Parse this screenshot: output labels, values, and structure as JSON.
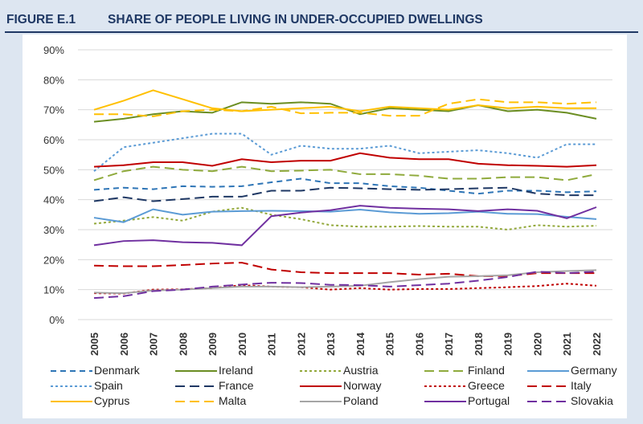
{
  "header": {
    "figure": "FIGURE E.1",
    "title": "SHARE OF PEOPLE LIVING IN UNDER-OCCUPIED DWELLINGS"
  },
  "chart_data": {
    "type": "line",
    "title": "SHARE OF PEOPLE LIVING IN UNDER-OCCUPIED DWELLINGS",
    "xlabel": "",
    "ylabel": "",
    "ylim": [
      0,
      90
    ],
    "yticks": [
      "0%",
      "10%",
      "20%",
      "30%",
      "40%",
      "50%",
      "60%",
      "70%",
      "80%",
      "90%"
    ],
    "grid": true,
    "legend_position": "bottom",
    "x": [
      "2005",
      "2006",
      "2007",
      "2008",
      "2009",
      "2010",
      "2011",
      "2012",
      "2013",
      "2014",
      "2015",
      "2016",
      "2017",
      "2018",
      "2019",
      "2020",
      "2021",
      "2022"
    ],
    "series": [
      {
        "name": "Denmark",
        "color": "#2e75b6",
        "dash": "dash",
        "values": [
          43.3,
          44,
          43.5,
          44.5,
          44.3,
          44.5,
          45.8,
          47,
          45.5,
          45.5,
          44.5,
          44,
          43,
          42,
          43,
          43,
          42.5,
          42.8
        ]
      },
      {
        "name": "Ireland",
        "color": "#6b8e23",
        "dash": "solid",
        "values": [
          66,
          67,
          68.5,
          69.5,
          69,
          72.5,
          72,
          72.5,
          72,
          68.5,
          70.5,
          70,
          69.5,
          71.5,
          69.5,
          70,
          69,
          67
        ]
      },
      {
        "name": "Austria",
        "color": "#92a83a",
        "dash": "dot",
        "values": [
          32,
          33,
          34.2,
          33,
          36,
          37.3,
          35,
          33.5,
          31.5,
          31,
          31,
          31.2,
          31,
          31,
          30,
          31.5,
          31,
          31.3
        ]
      },
      {
        "name": "Finland",
        "color": "#8faa3c",
        "dash": "longdash",
        "values": [
          46.5,
          49.5,
          51,
          50,
          49.5,
          51,
          49.5,
          49.7,
          50,
          48.5,
          48.5,
          48,
          47,
          47,
          47.5,
          47.5,
          46.5,
          48.5
        ]
      },
      {
        "name": "Germany",
        "color": "#5b9bd5",
        "dash": "solid",
        "values": [
          34,
          32.5,
          36.8,
          35,
          36,
          36.2,
          36.3,
          36.2,
          36,
          36.7,
          35.8,
          35.3,
          35.5,
          36,
          35.3,
          35.2,
          34.3,
          33.5
        ]
      },
      {
        "name": "Spain",
        "color": "#5b9bd5",
        "dash": "dot",
        "values": [
          49.5,
          57.5,
          59,
          60.5,
          62,
          62,
          55,
          58,
          57,
          57,
          58,
          55.5,
          56,
          56.5,
          55.5,
          54,
          58.5,
          58.5
        ]
      },
      {
        "name": "France",
        "color": "#1f3864",
        "dash": "longdash",
        "values": [
          39.5,
          40.8,
          39.5,
          40.2,
          41,
          41,
          43,
          43,
          44,
          43.8,
          43.5,
          43.3,
          43.5,
          43.8,
          44,
          42,
          41.5,
          41.5
        ]
      },
      {
        "name": "Norway",
        "color": "#c00000",
        "dash": "solid",
        "values": [
          51,
          51.5,
          52.5,
          52.5,
          51.3,
          53.5,
          52.5,
          53,
          53,
          55.5,
          54,
          53.5,
          53.5,
          52,
          51.5,
          51.3,
          51,
          51.5
        ]
      },
      {
        "name": "Greece",
        "color": "#c00000",
        "dash": "dot",
        "values": [
          8.8,
          8.7,
          10,
          10.1,
          10.5,
          11.5,
          11,
          10.8,
          10,
          10.5,
          10,
          10.2,
          10.2,
          10.5,
          10.8,
          11.2,
          12,
          11.3
        ]
      },
      {
        "name": "Italy",
        "color": "#c00000",
        "dash": "longdash",
        "values": [
          18,
          17.8,
          17.8,
          18.2,
          18.7,
          19,
          16.7,
          15.8,
          15.5,
          15.5,
          15.5,
          15,
          15.3,
          14.5,
          14.5,
          15.5,
          15.5,
          15.5
        ]
      },
      {
        "name": "Cyprus",
        "color": "#ffc000",
        "dash": "solid",
        "values": [
          70,
          73,
          76.5,
          73.5,
          70.5,
          69.5,
          70,
          70.5,
          71,
          69.5,
          71,
          70.5,
          70,
          71.5,
          70.5,
          71,
          70.5,
          70.5
        ]
      },
      {
        "name": "Malta",
        "color": "#ffc000",
        "dash": "longdash",
        "values": [
          68.5,
          68.5,
          67.8,
          69.5,
          70,
          69.5,
          71,
          68.8,
          69,
          69,
          68,
          68,
          72,
          73.5,
          72.5,
          72.5,
          72,
          72.5
        ]
      },
      {
        "name": "Poland",
        "color": "#a5a5a5",
        "dash": "solid",
        "values": [
          9,
          8.8,
          9.7,
          10,
          10.5,
          11,
          11,
          10.8,
          11,
          11.3,
          12.5,
          13.5,
          14.3,
          14.5,
          14.8,
          15.8,
          16.2,
          16.5
        ]
      },
      {
        "name": "Portugal",
        "color": "#7030a0",
        "dash": "solid",
        "values": [
          24.8,
          26.2,
          26.5,
          25.8,
          25.6,
          24.8,
          34.5,
          35.7,
          36.5,
          38,
          37.3,
          37,
          36.8,
          36.2,
          36.8,
          36.3,
          33.8,
          37.5
        ]
      },
      {
        "name": "Slovakia",
        "color": "#7030a0",
        "dash": "longdash",
        "values": [
          7.2,
          7.8,
          9.5,
          10,
          11,
          11.7,
          12.3,
          12.2,
          11.6,
          11.5,
          11,
          11.5,
          12,
          13,
          14.2,
          16,
          15.5,
          16
        ]
      }
    ]
  }
}
